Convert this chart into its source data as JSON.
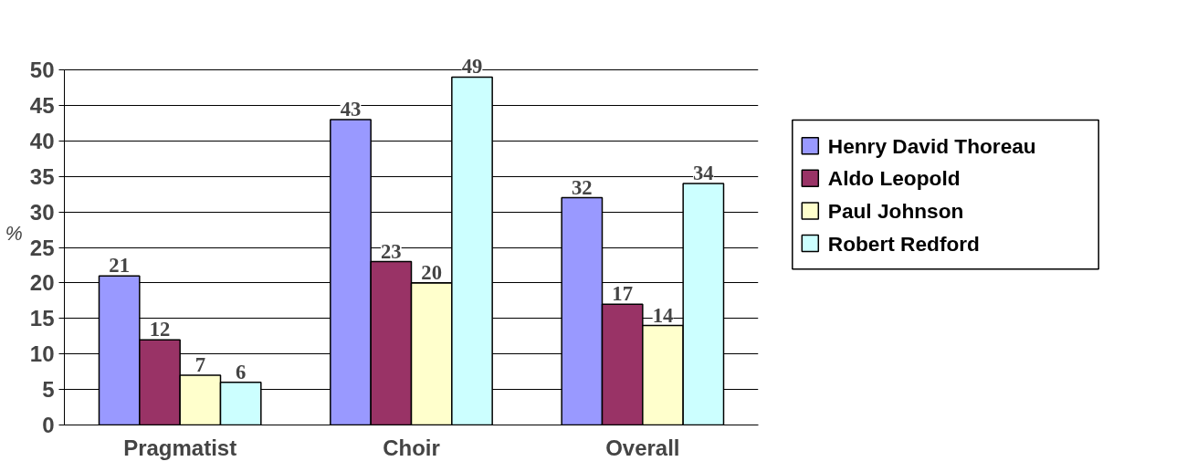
{
  "chart_data": {
    "type": "bar",
    "ylabel": "%",
    "categories": [
      "Pragmatist",
      "Choir",
      "Overall"
    ],
    "series": [
      {
        "name": "Henry David Thoreau",
        "color": "#9999ff",
        "values": [
          21,
          43,
          32
        ]
      },
      {
        "name": "Aldo Leopold",
        "color": "#993366",
        "values": [
          12,
          23,
          17
        ]
      },
      {
        "name": "Paul Johnson",
        "color": "#ffffcc",
        "values": [
          7,
          20,
          14
        ]
      },
      {
        "name": "Robert Redford",
        "color": "#ccffff",
        "values": [
          6,
          49,
          34
        ]
      }
    ],
    "ylim": [
      0,
      50
    ],
    "yticks": [
      0,
      5,
      10,
      15,
      20,
      25,
      30,
      35,
      40,
      45,
      50
    ],
    "grid": "y",
    "legend": "right",
    "data_labels": true
  }
}
